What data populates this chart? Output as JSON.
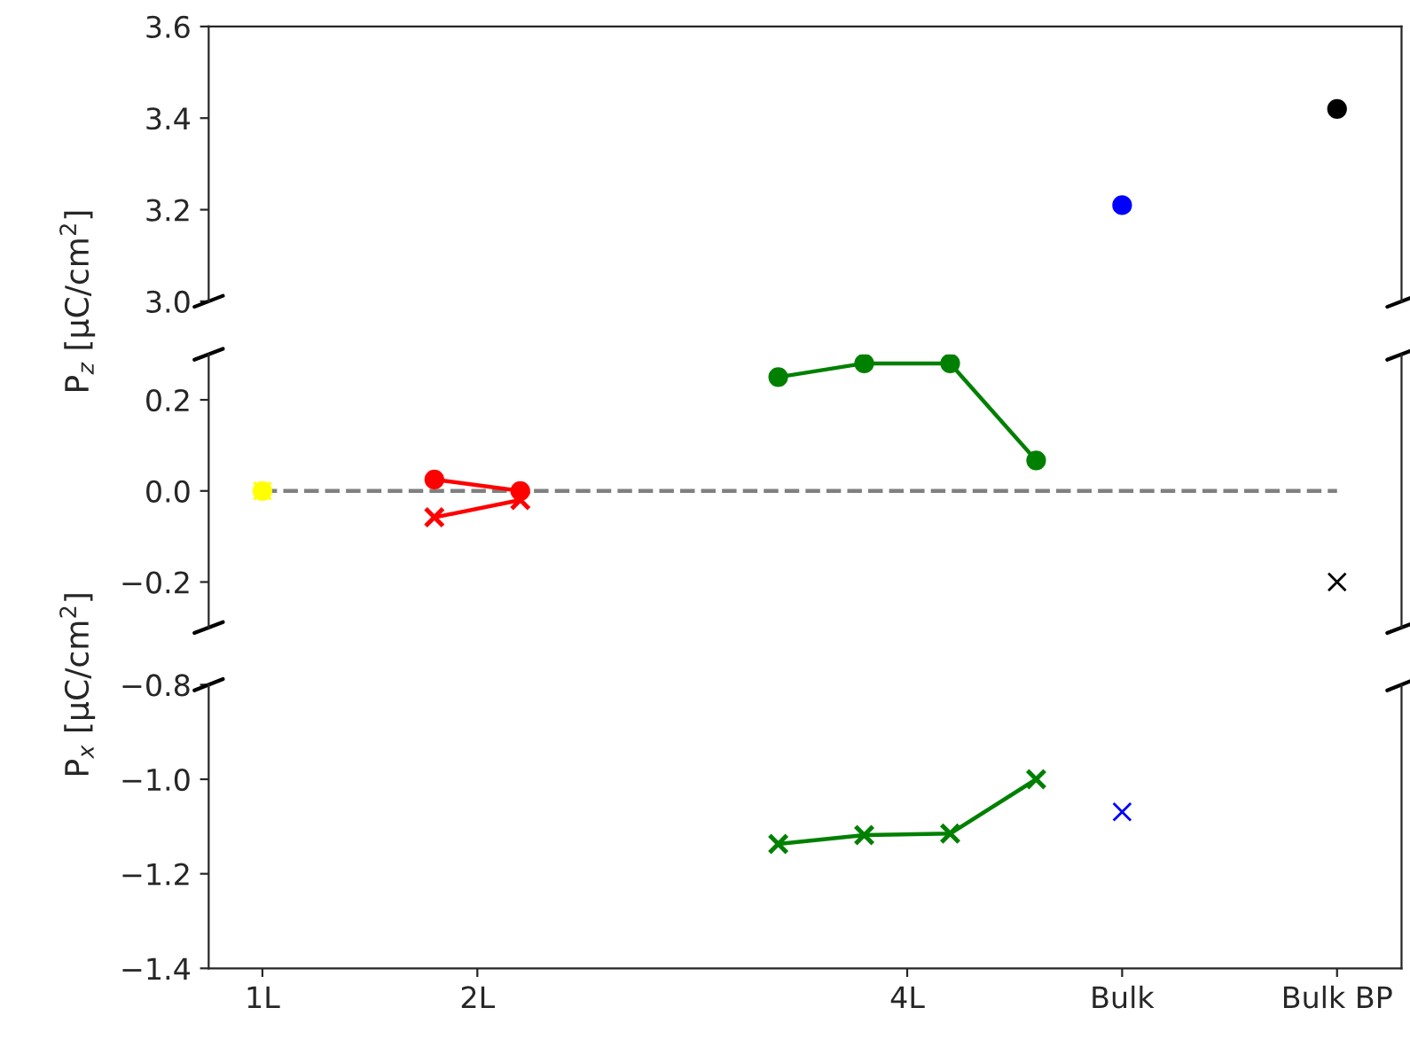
{
  "chart_data": [
    {
      "type": "scatter",
      "ylabel": "P$_{z}$ [μC/cm$^{2}$]",
      "xlim": [
        0.75,
        6.3
      ],
      "ylim": [
        3.0,
        3.6
      ],
      "yticks": [
        {
          "value": 3.0,
          "label": "3.0"
        },
        {
          "value": 3.2,
          "label": "3.2"
        },
        {
          "value": 3.4,
          "label": "3.4"
        },
        {
          "value": 3.6,
          "label": "3.6"
        }
      ],
      "tick_labels": "y",
      "series": [
        {
          "color": "#0000ff",
          "marker": "circle",
          "x": [
            5
          ],
          "values": [
            3.21
          ]
        },
        {
          "color": "#000000",
          "marker": "circle",
          "x": [
            6
          ],
          "values": [
            3.42
          ]
        }
      ]
    },
    {
      "type": "line",
      "xlim": [
        0.75,
        6.3
      ],
      "ylim": [
        -0.3,
        0.3
      ],
      "yticks": [
        {
          "value": -0.2,
          "label": "−0.2"
        },
        {
          "value": 0.0,
          "label": "0.0"
        },
        {
          "value": 0.2,
          "label": "0.2"
        }
      ],
      "tick_labels": "y",
      "series": [
        {
          "color": "#808080",
          "marker": "none",
          "line_style": "dashed",
          "x": [
            1,
            6
          ],
          "values": [
            0,
            0
          ]
        },
        {
          "type": "scatter",
          "color": "#ffff00",
          "marker": "circle",
          "x": [
            1
          ],
          "values": [
            0
          ]
        },
        {
          "type": "scatter",
          "color": "#ffff00",
          "marker": "cross",
          "x": [
            1
          ],
          "values": [
            0
          ]
        },
        {
          "color": "#ff0000",
          "marker": "circle",
          "line_style": "solid",
          "x": [
            1.8,
            2.2
          ],
          "values": [
            0.025,
            0.0
          ]
        },
        {
          "color": "#ff0000",
          "marker": "cross",
          "line_style": "solid",
          "x": [
            1.8,
            2.2
          ],
          "values": [
            -0.058,
            -0.02
          ]
        },
        {
          "color": "#008000",
          "marker": "circle",
          "line_style": "solid",
          "x": [
            3.4,
            3.8,
            4.2,
            4.6
          ],
          "values": [
            0.25,
            0.28,
            0.28,
            0.067
          ]
        },
        {
          "type": "scatter",
          "color": "#000000",
          "marker": "cross",
          "x": [
            6
          ],
          "values": [
            -0.2
          ]
        }
      ]
    },
    {
      "type": "line",
      "ylabel": "P$_{x}$ [μC/cm$^{2}$]",
      "xlim": [
        0.75,
        6.3
      ],
      "ylim": [
        -1.4,
        -0.8
      ],
      "yticks": [
        {
          "value": -1.4,
          "label": "−1.4"
        },
        {
          "value": -1.2,
          "label": "−1.2"
        },
        {
          "value": -1.0,
          "label": "−1.0"
        },
        {
          "value": -0.8,
          "label": "−0.8"
        }
      ],
      "xticks": [
        {
          "value": 1,
          "label": "1L"
        },
        {
          "value": 2,
          "label": "2L"
        },
        {
          "value": 4,
          "label": "4L"
        },
        {
          "value": 5,
          "label": "Bulk"
        },
        {
          "value": 6,
          "label": "Bulk BP"
        }
      ],
      "series": [
        {
          "color": "#008000",
          "marker": "cross",
          "line_style": "solid",
          "x": [
            3.4,
            3.8,
            4.2,
            4.6
          ],
          "values": [
            -1.137,
            -1.118,
            -1.115,
            -1.0
          ]
        },
        {
          "type": "scatter",
          "color": "#0000ff",
          "marker": "cross",
          "x": [
            5
          ],
          "values": [
            -1.069
          ]
        }
      ]
    }
  ]
}
